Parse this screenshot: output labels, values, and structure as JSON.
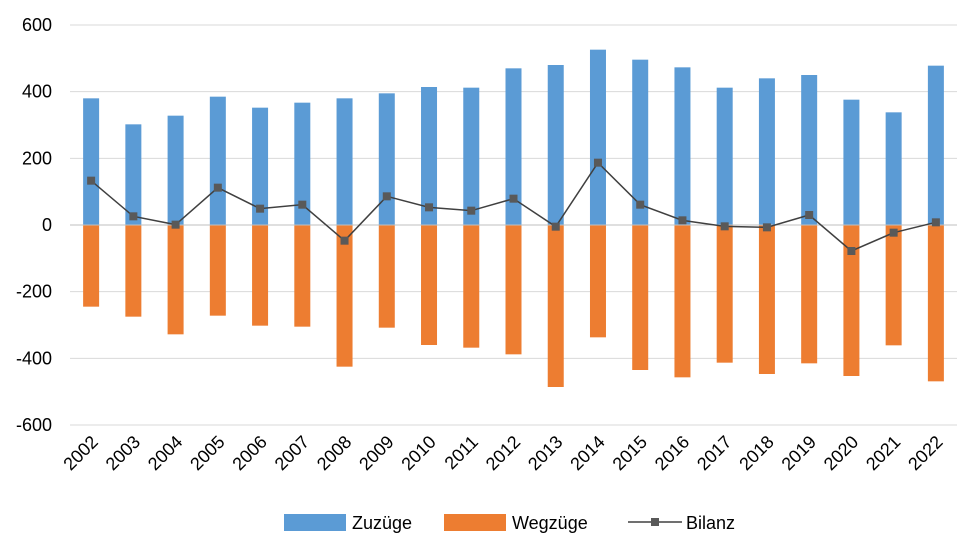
{
  "chart_data": {
    "type": "bar",
    "categories": [
      "2002",
      "2003",
      "2004",
      "2005",
      "2006",
      "2007",
      "2008",
      "2009",
      "2010",
      "2011",
      "2012",
      "2013",
      "2014",
      "2015",
      "2016",
      "2017",
      "2018",
      "2019",
      "2020",
      "2021",
      "2022"
    ],
    "series": [
      {
        "name": "Zuzüge",
        "type": "bar",
        "color": "#5b9bd5",
        "values": [
          380,
          302,
          328,
          385,
          352,
          367,
          380,
          395,
          414,
          412,
          470,
          480,
          526,
          496,
          473,
          412,
          440,
          450,
          376,
          338,
          478
        ]
      },
      {
        "name": "Wegzüge",
        "type": "bar",
        "color": "#ed7d31",
        "values": [
          -245,
          -275,
          -328,
          -272,
          -302,
          -305,
          -425,
          -308,
          -360,
          -368,
          -388,
          -486,
          -337,
          -435,
          -457,
          -413,
          -447,
          -415,
          -453,
          -361,
          -469
        ]
      },
      {
        "name": "Bilanz",
        "type": "line",
        "color": "#404040",
        "marker_color": "#595959",
        "values": [
          133,
          26,
          1,
          112,
          49,
          61,
          -47,
          86,
          53,
          43,
          79,
          -5,
          187,
          61,
          14,
          -4,
          -7,
          30,
          -78,
          -23,
          8
        ]
      }
    ],
    "title": "",
    "xlabel": "",
    "ylabel": "",
    "ylim": [
      -600,
      600
    ],
    "yticks": [
      600,
      400,
      200,
      0,
      -200,
      -400,
      -600
    ],
    "grid": true,
    "legend_position": "bottom"
  }
}
